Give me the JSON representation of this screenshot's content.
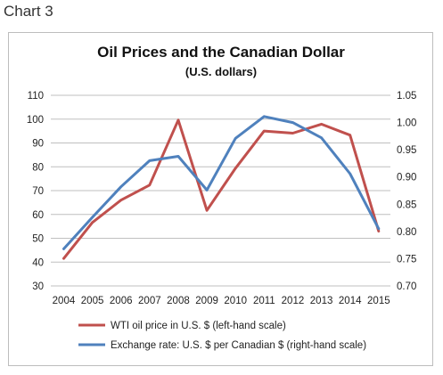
{
  "page_label": "Chart 3",
  "chart_data": {
    "type": "line",
    "title": "Oil Prices and the Canadian Dollar",
    "subtitle": "(U.S. dollars)",
    "x": [
      "2004",
      "2005",
      "2006",
      "2007",
      "2008",
      "2009",
      "2010",
      "2011",
      "2012",
      "2013",
      "2014",
      "2015"
    ],
    "left_axis": {
      "ylim": [
        30,
        110
      ],
      "ticks": [
        "30",
        "40",
        "50",
        "60",
        "70",
        "80",
        "90",
        "100",
        "110"
      ]
    },
    "right_axis": {
      "ylim": [
        0.7,
        1.05
      ],
      "ticks": [
        "0.70",
        "0.75",
        "0.80",
        "0.85",
        "0.90",
        "0.95",
        "1.00",
        "1.05"
      ]
    },
    "grid": true,
    "legend_position": "bottom",
    "series": [
      {
        "name": "WTI oil price in U.S. $ (left-hand scale)",
        "axis": "left",
        "color": "#c0504d",
        "values": [
          41.5,
          56.6,
          66.0,
          72.3,
          99.6,
          61.7,
          79.4,
          95.0,
          94.1,
          97.9,
          93.3,
          53.0
        ]
      },
      {
        "name": "Exchange rate: U.S. $ per Canadian $ (right-hand scale)",
        "axis": "right",
        "color": "#4f81bd",
        "values": [
          0.768,
          0.826,
          0.882,
          0.93,
          0.938,
          0.876,
          0.971,
          1.011,
          1.0,
          0.972,
          0.906,
          0.805
        ]
      }
    ]
  }
}
